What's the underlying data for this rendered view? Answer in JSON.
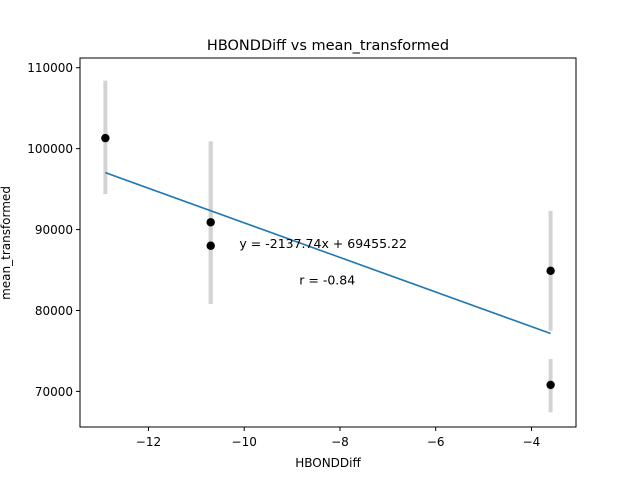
{
  "chart_data": {
    "type": "scatter",
    "title": "HBONDDiff vs mean_transformed",
    "xlabel": "HBONDDiff",
    "ylabel": "mean_transformed",
    "xlim": [
      -13.43,
      -3.07
    ],
    "ylim": [
      65600,
      111200
    ],
    "x_ticks": [
      -12,
      -10,
      -8,
      -6,
      -4
    ],
    "x_tick_labels": [
      "−12",
      "−10",
      "−8",
      "−6",
      "−4"
    ],
    "y_ticks": [
      70000,
      80000,
      90000,
      100000,
      110000
    ],
    "y_tick_labels": [
      "70000",
      "80000",
      "90000",
      "100000",
      "110000"
    ],
    "grid": false,
    "points": [
      {
        "x": -12.9,
        "y": 101300,
        "err_low": 94400,
        "err_high": 108400
      },
      {
        "x": -10.7,
        "y": 90900,
        "err_low": 80800,
        "err_high": 100900
      },
      {
        "x": -10.7,
        "y": 88000,
        "err_low": 80800,
        "err_high": 100900
      },
      {
        "x": -3.6,
        "y": 84900,
        "err_low": 77500,
        "err_high": 92300
      },
      {
        "x": -3.6,
        "y": 70800,
        "err_low": 67400,
        "err_high": 74000
      }
    ],
    "fit_line": {
      "x": [
        -12.9,
        -3.6
      ],
      "y": [
        97030,
        77150
      ]
    },
    "annotations": [
      {
        "text": "y = -2137.74x + 69455.22",
        "x": -10.1,
        "y": 87700
      },
      {
        "text": "r = -0.84",
        "x": -8.85,
        "y": 83200
      }
    ],
    "colors": {
      "points": "#000000",
      "fit_line": "#1f77b4",
      "error_bars": "#d3d3d3"
    }
  }
}
